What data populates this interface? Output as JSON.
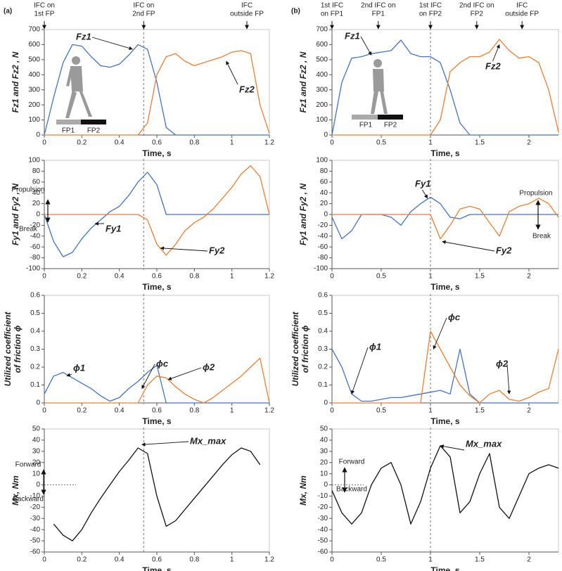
{
  "chart_data": [
    {
      "type": "line",
      "panel": "(a)",
      "xlabel": "Time, s",
      "ylabel": [
        "Fz1 and Fz2 , N"
      ],
      "x": [
        0,
        0.05,
        0.1,
        0.15,
        0.2,
        0.25,
        0.3,
        0.35,
        0.4,
        0.45,
        0.5,
        0.55,
        0.6,
        0.65,
        0.7,
        0.75,
        0.8,
        0.85,
        0.9,
        0.95,
        1,
        1.05,
        1.1,
        1.15,
        1.2
      ],
      "series": [
        {
          "color": "#4472c4",
          "values": [
            0,
            250,
            480,
            600,
            590,
            520,
            460,
            450,
            470,
            530,
            600,
            570,
            350,
            50,
            0,
            0,
            0,
            0,
            0,
            0,
            0,
            0,
            0,
            0,
            0
          ]
        },
        {
          "color": "#ed7d31",
          "values": [
            0,
            0,
            0,
            0,
            0,
            0,
            0,
            0,
            0,
            0,
            0,
            80,
            400,
            520,
            540,
            490,
            460,
            480,
            500,
            520,
            550,
            560,
            540,
            200,
            10
          ]
        }
      ],
      "xlim": [
        0,
        1.2
      ],
      "xticks": [
        0,
        0.2,
        0.4,
        0.6,
        0.8,
        1,
        1.2
      ],
      "ylim": [
        0,
        700
      ],
      "yticks": [
        0,
        100,
        200,
        300,
        400,
        500,
        600,
        700
      ],
      "vline": 0.53,
      "events": [
        {
          "label": [
            "IFC on",
            "1st FP"
          ],
          "x": 0
        },
        {
          "label": [
            "IFC on",
            "2nd FP"
          ],
          "x": 0.53
        },
        {
          "label": [
            "IFC",
            "outside FP"
          ],
          "x": 1.08
        }
      ],
      "inset_labels": [
        "FP1",
        "FP2"
      ],
      "annotations": [
        {
          "text": "Fz1",
          "x": 0.47,
          "y": 570
        },
        {
          "text": "Fz2",
          "x": 0.97,
          "y": 490
        }
      ]
    },
    {
      "type": "line",
      "xlabel": "Time, s",
      "ylabel": [
        "Fy1 and Fy2 , N"
      ],
      "x": [
        0,
        0.05,
        0.1,
        0.15,
        0.2,
        0.25,
        0.3,
        0.35,
        0.4,
        0.45,
        0.5,
        0.55,
        0.6,
        0.65,
        0.7,
        0.75,
        0.8,
        0.85,
        0.9,
        0.95,
        1,
        1.05,
        1.1,
        1.15,
        1.2
      ],
      "series": [
        {
          "color": "#4472c4",
          "values": [
            0,
            -50,
            -78,
            -70,
            -45,
            -25,
            -10,
            5,
            15,
            35,
            60,
            78,
            55,
            0,
            0,
            0,
            0,
            0,
            0,
            0,
            0,
            0,
            0,
            0,
            0
          ]
        },
        {
          "color": "#ed7d31",
          "values": [
            0,
            0,
            0,
            0,
            0,
            0,
            0,
            0,
            0,
            0,
            0,
            -10,
            -55,
            -75,
            -55,
            -30,
            -15,
            -5,
            10,
            30,
            50,
            75,
            90,
            70,
            0
          ]
        }
      ],
      "xlim": [
        0,
        1.2
      ],
      "xticks": [
        0,
        0.2,
        0.4,
        0.6,
        0.8,
        1,
        1.2
      ],
      "ylim": [
        -100,
        100
      ],
      "yticks": [
        -100,
        -80,
        -60,
        -40,
        -20,
        0,
        20,
        40,
        60,
        80,
        100
      ],
      "vline": 0.53,
      "annotations": [
        {
          "text": "Propulsion"
        },
        {
          "text": "Break"
        },
        {
          "text": "Fy1",
          "x": 0.27,
          "y": -17
        },
        {
          "text": "Fy2",
          "x": 0.62,
          "y": -62
        }
      ]
    },
    {
      "type": "line",
      "xlabel": "Time, s",
      "ylabel": [
        "Utilized coefficient",
        "of friction ϕ"
      ],
      "x": [
        0,
        0.05,
        0.1,
        0.15,
        0.2,
        0.25,
        0.3,
        0.35,
        0.4,
        0.45,
        0.5,
        0.55,
        0.6,
        0.65,
        0.7,
        0.75,
        0.8,
        0.85,
        0.9,
        0.95,
        1,
        1.05,
        1.1,
        1.15,
        1.2
      ],
      "series": [
        {
          "color": "#4472c4",
          "values": [
            0.05,
            0.15,
            0.17,
            0.14,
            0.11,
            0.08,
            0.04,
            0.01,
            0.03,
            0.08,
            0.12,
            0.17,
            0.21,
            0,
            0,
            0,
            0,
            0,
            0,
            0,
            0,
            0,
            0,
            0,
            0
          ]
        },
        {
          "color": "#ed7d31",
          "values": [
            0,
            0,
            0,
            0,
            0,
            0,
            0,
            0,
            0,
            0,
            0,
            0.1,
            0.15,
            0.14,
            0.09,
            0.05,
            0.02,
            0,
            0.03,
            0.07,
            0.11,
            0.15,
            0.2,
            0.25,
            0
          ]
        }
      ],
      "xlim": [
        0,
        1.2
      ],
      "xticks": [
        0,
        0.2,
        0.4,
        0.6,
        0.8,
        1,
        1.2
      ],
      "ylim": [
        0,
        0.6
      ],
      "yticks": [
        0,
        0.1,
        0.2,
        0.3,
        0.4,
        0.5,
        0.6
      ],
      "vline": 0.53,
      "annotations": [
        {
          "text": "ϕ1",
          "x": 0.12,
          "y": 0.15
        },
        {
          "text": "ϕc",
          "x": 0.52,
          "y": 0.08
        },
        {
          "text": "ϕ2",
          "x": 0.66,
          "y": 0.13
        }
      ]
    },
    {
      "type": "line",
      "xlabel": "Time, s",
      "ylabel": [
        "Mx, Nm"
      ],
      "x": [
        0,
        0.05,
        0.1,
        0.15,
        0.2,
        0.25,
        0.3,
        0.35,
        0.4,
        0.45,
        0.5,
        0.55,
        0.6,
        0.65,
        0.7,
        0.75,
        0.8,
        0.85,
        0.9,
        0.95,
        1,
        1.05,
        1.1,
        1.15,
        1.2
      ],
      "series": [
        {
          "color": "#111111",
          "values": [
            null,
            -35,
            -45,
            -50,
            -40,
            -25,
            -12,
            0,
            12,
            22,
            33,
            28,
            -10,
            -37,
            -32,
            -22,
            -12,
            -2,
            8,
            18,
            27,
            33,
            30,
            18,
            null
          ]
        }
      ],
      "xlim": [
        0,
        1.2
      ],
      "xticks": [
        0,
        0.2,
        0.4,
        0.6,
        0.8,
        1,
        1.2
      ],
      "ylim": [
        -60,
        50
      ],
      "yticks": [
        -60,
        -50,
        -40,
        -30,
        -20,
        -10,
        0,
        10,
        20,
        30,
        40,
        50
      ],
      "vline": 0.53,
      "annotations": [
        {
          "text": "Mx_max",
          "x": 0.52,
          "y": 36
        },
        {
          "text": "Forward"
        },
        {
          "text": "Backward"
        }
      ]
    },
    {
      "type": "line",
      "panel": "(b)",
      "xlabel": "Time, s",
      "ylabel": [
        "Fz1 and Fz2 , N"
      ],
      "x": [
        0,
        0.1,
        0.2,
        0.3,
        0.4,
        0.5,
        0.6,
        0.7,
        0.8,
        0.9,
        1,
        1.1,
        1.2,
        1.3,
        1.4,
        1.5,
        1.6,
        1.7,
        1.8,
        1.9,
        2,
        2.1,
        2.2,
        2.3
      ],
      "series": [
        {
          "color": "#4472c4",
          "values": [
            0,
            350,
            510,
            520,
            540,
            550,
            560,
            630,
            540,
            520,
            520,
            480,
            300,
            80,
            0,
            0,
            0,
            0,
            0,
            0,
            0,
            0,
            0,
            0
          ]
        },
        {
          "color": "#ed7d31",
          "values": [
            0,
            0,
            0,
            0,
            0,
            0,
            0,
            0,
            0,
            0,
            0,
            100,
            420,
            480,
            520,
            520,
            550,
            635,
            560,
            510,
            520,
            480,
            300,
            20
          ]
        }
      ],
      "xlim": [
        0,
        2.3
      ],
      "xticks": [
        0,
        0.5,
        1,
        1.5,
        2
      ],
      "ylim": [
        0,
        700
      ],
      "yticks": [
        0,
        100,
        200,
        300,
        400,
        500,
        600,
        700
      ],
      "vline": 1,
      "events": [
        {
          "label": [
            "1st IFC",
            "on FP1"
          ],
          "x": 0
        },
        {
          "label": [
            "2nd IFC on",
            "FP1"
          ],
          "x": 0.47
        },
        {
          "label": [
            "1st IFC",
            "on FP2"
          ],
          "x": 1
        },
        {
          "label": [
            "2nd IFC on",
            "FP2"
          ],
          "x": 1.47
        },
        {
          "label": [
            "IFC",
            "outside FP"
          ],
          "x": 1.93
        }
      ],
      "inset_labels": [
        "FP1",
        "FP2"
      ],
      "annotations": [
        {
          "text": "Fz1",
          "x": 0.4,
          "y": 530
        },
        {
          "text": "Fz2",
          "x": 1.7,
          "y": 600
        }
      ]
    },
    {
      "type": "line",
      "xlabel": "Time, s",
      "ylabel": [
        "Fy1 and Fy2 , N"
      ],
      "x": [
        0,
        0.1,
        0.2,
        0.3,
        0.4,
        0.5,
        0.6,
        0.7,
        0.8,
        0.9,
        1,
        1.1,
        1.2,
        1.3,
        1.4,
        1.5,
        1.6,
        1.7,
        1.8,
        1.9,
        2,
        2.1,
        2.2,
        2.3
      ],
      "series": [
        {
          "color": "#4472c4",
          "values": [
            -5,
            -45,
            -30,
            0,
            0,
            0,
            -5,
            -20,
            5,
            20,
            32,
            20,
            -5,
            -8,
            0,
            0,
            0,
            0,
            0,
            0,
            0,
            0,
            0,
            0
          ]
        },
        {
          "color": "#ed7d31",
          "values": [
            0,
            0,
            0,
            0,
            0,
            0,
            0,
            0,
            0,
            0,
            0,
            -45,
            -20,
            10,
            15,
            10,
            -15,
            -40,
            5,
            15,
            20,
            30,
            20,
            -5
          ]
        }
      ],
      "xlim": [
        0,
        2.3
      ],
      "xticks": [
        0,
        0.5,
        1,
        1.5,
        2
      ],
      "ylim": [
        -100,
        100
      ],
      "yticks": [
        -100,
        -80,
        -60,
        -40,
        -20,
        0,
        20,
        40,
        60,
        80,
        100
      ],
      "vline": 1,
      "annotations": [
        {
          "text": "Fy1",
          "x": 0.97,
          "y": 30
        },
        {
          "text": "Fy2",
          "x": 1.12,
          "y": -50
        },
        {
          "text": "Propulsion"
        },
        {
          "text": "Break"
        }
      ]
    },
    {
      "type": "line",
      "xlabel": "Time, s",
      "ylabel": [
        "Utilized coefficient",
        "of friction ϕ"
      ],
      "x": [
        0,
        0.1,
        0.2,
        0.3,
        0.4,
        0.5,
        0.6,
        0.7,
        0.8,
        0.9,
        1,
        1.1,
        1.2,
        1.3,
        1.4,
        1.5,
        1.6,
        1.7,
        1.8,
        1.9,
        2,
        2.1,
        2.2,
        2.3
      ],
      "series": [
        {
          "color": "#4472c4",
          "values": [
            0.3,
            0.2,
            0.05,
            0.01,
            0.01,
            0.02,
            0.03,
            0.03,
            0.04,
            0.05,
            0.06,
            0.07,
            0.05,
            0.3,
            0.05,
            0,
            0,
            0,
            0,
            0,
            0,
            0,
            0,
            0
          ]
        },
        {
          "color": "#ed7d31",
          "values": [
            0,
            0,
            0,
            0,
            0,
            0,
            0,
            0,
            0,
            0,
            0.4,
            0.3,
            0.2,
            0.1,
            0.04,
            0,
            0.05,
            0.07,
            0.02,
            0.01,
            0.03,
            0.06,
            0.08,
            0.3
          ]
        }
      ],
      "xlim": [
        0,
        2.3
      ],
      "xticks": [
        0,
        0.5,
        1,
        1.5,
        2
      ],
      "ylim": [
        0,
        0.6
      ],
      "yticks": [
        0,
        0.1,
        0.2,
        0.3,
        0.4,
        0.5,
        0.6
      ],
      "vline": 1,
      "annotations": [
        {
          "text": "ϕc",
          "x": 1.03,
          "y": 0.3
        },
        {
          "text": "ϕ1",
          "x": 0.2,
          "y": 0.05
        },
        {
          "text": "ϕ2",
          "x": 1.8,
          "y": 0.05
        }
      ]
    },
    {
      "type": "line",
      "xlabel": "Time, s",
      "ylabel": [
        "Mx, Nm"
      ],
      "x": [
        0,
        0.1,
        0.2,
        0.3,
        0.4,
        0.5,
        0.6,
        0.7,
        0.8,
        0.9,
        1,
        1.1,
        1.2,
        1.3,
        1.4,
        1.5,
        1.6,
        1.7,
        1.8,
        1.9,
        2,
        2.1,
        2.2,
        2.3
      ],
      "series": [
        {
          "color": "#111111",
          "values": [
            -5,
            -25,
            -35,
            -25,
            0,
            15,
            20,
            0,
            -35,
            -15,
            15,
            35,
            25,
            -25,
            -15,
            10,
            28,
            -20,
            -30,
            -10,
            10,
            15,
            18,
            15
          ]
        }
      ],
      "xlim": [
        0,
        2.3
      ],
      "xticks": [
        0,
        0.5,
        1,
        1.5,
        2
      ],
      "ylim": [
        -60,
        50
      ],
      "yticks": [
        -60,
        -50,
        -40,
        -30,
        -20,
        -10,
        0,
        10,
        20,
        30,
        40,
        50
      ],
      "vline": 1,
      "annotations": [
        {
          "text": "Mx_max",
          "x": 1.1,
          "y": 35
        },
        {
          "text": "Forward"
        },
        {
          "text": "Backward"
        }
      ]
    }
  ]
}
